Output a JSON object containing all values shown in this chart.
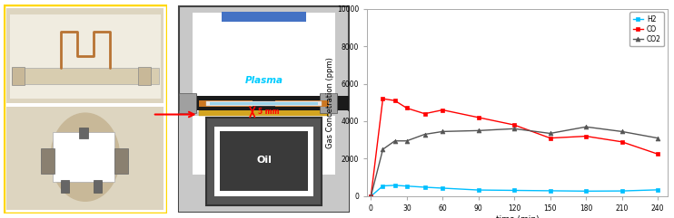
{
  "time_points": [
    0,
    10,
    20,
    30,
    45,
    60,
    90,
    120,
    150,
    180,
    210,
    240
  ],
  "H2": [
    0,
    550,
    580,
    540,
    480,
    430,
    330,
    310,
    290,
    270,
    280,
    340
  ],
  "CO": [
    0,
    5200,
    5100,
    4700,
    4400,
    4600,
    4200,
    3800,
    3100,
    3200,
    2900,
    2250
  ],
  "CO2": [
    0,
    2500,
    2950,
    2950,
    3300,
    3450,
    3500,
    3600,
    3350,
    3700,
    3450,
    3100
  ],
  "H2_color": "#00bfff",
  "CO_color": "#ff0000",
  "CO2_color": "#555555",
  "ylabel": "Gas Concetration (ppm)",
  "xlabel": "time (min)",
  "ylim": [
    0,
    10000
  ],
  "yticks": [
    0,
    2000,
    4000,
    6000,
    8000,
    10000
  ],
  "xticks": [
    0,
    30,
    60,
    90,
    120,
    150,
    180,
    210,
    240
  ],
  "legend_labels": [
    "H2",
    "CO",
    "CO2"
  ],
  "bg_color": "#ffffff",
  "diag_outer_color": "#c8c8c8",
  "diag_wall_color": "#c8c8c8",
  "diag_white_color": "#ffffff",
  "diag_blue_bar": "#4472c4",
  "diag_black_band": "#1a1a1a",
  "diag_orange_strip": "#cc7722",
  "diag_white_strip": "#e8e8e8",
  "diag_blue_glow": "#87CEEB",
  "diag_gold_strip": "#d4a520",
  "diag_oil_bg": "#b0b0b0",
  "diag_oil_box_outer": "#555555",
  "diag_oil_box_inner": "#3a3a3a",
  "diag_plasma_color": "#00ccff",
  "connector_color": "#a0a0a0"
}
